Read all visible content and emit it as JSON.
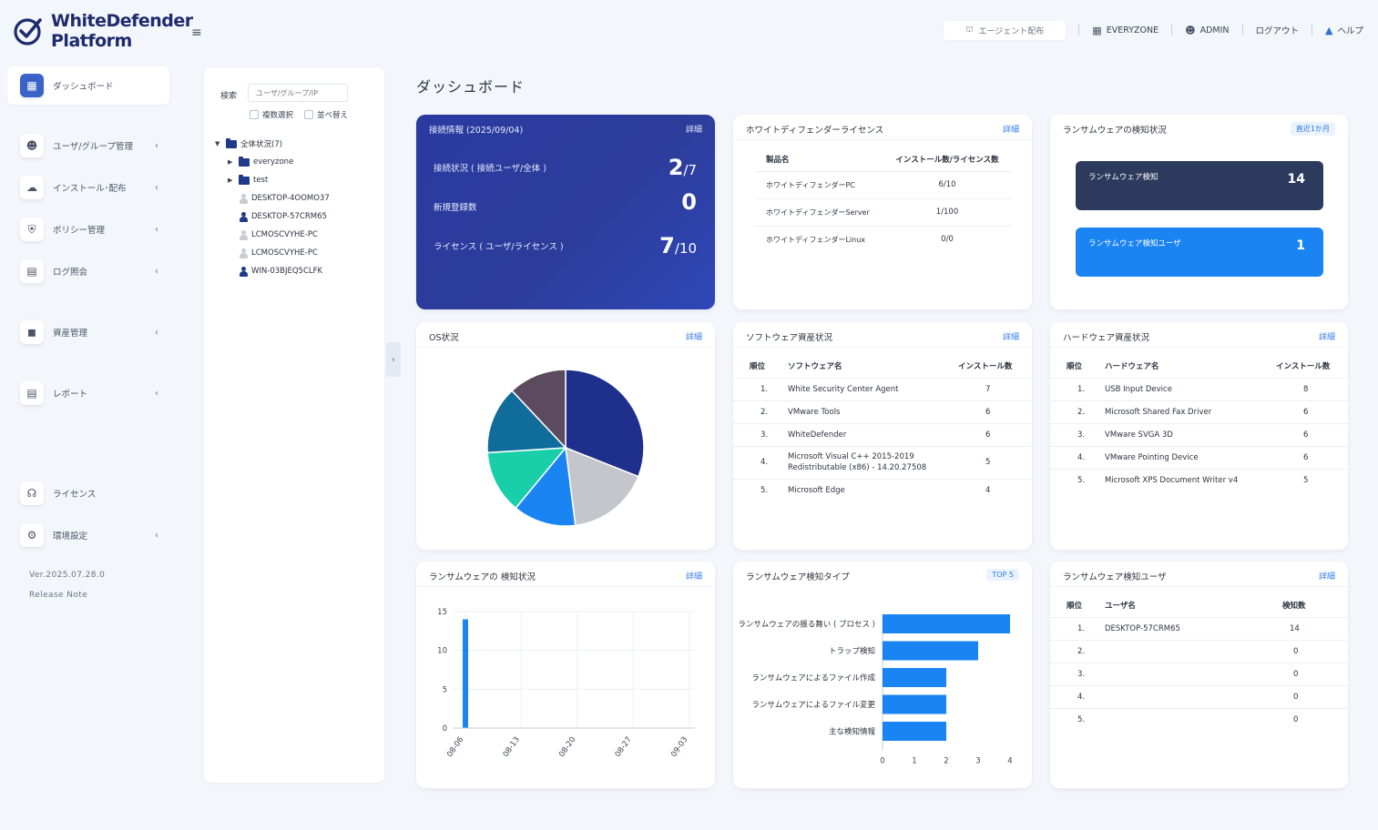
{
  "header": {
    "logo_line1": "WhiteDefender",
    "logo_line2": "Platform",
    "agent_button": "エージェント配布",
    "zone": "EVERYZONE",
    "user": "ADMIN",
    "logout": "ログアウト",
    "help": "ヘルプ"
  },
  "sidebar": {
    "items": [
      {
        "label": "ダッシュボード"
      },
      {
        "label": "ユーザ/グループ管理"
      },
      {
        "label": "インストール･配布"
      },
      {
        "label": "ポリシー管理"
      },
      {
        "label": "ログ照会"
      },
      {
        "label": "資産管理"
      },
      {
        "label": "レポート"
      },
      {
        "label": "ライセンス"
      },
      {
        "label": "環境設定"
      }
    ],
    "version": "Ver.2025.07.28.0",
    "release_note": "Release Note"
  },
  "tree": {
    "search_label": "検索",
    "search_placeholder": "ユーザ/グループ/IP",
    "multi_select": "複数選択",
    "sort": "並べ替え",
    "root": "全体状況(7)",
    "groups": [
      "everyzone",
      "test"
    ],
    "users": [
      {
        "name": "DESKTOP-4OOMO37",
        "active": false
      },
      {
        "name": "DESKTOP-57CRM65",
        "active": true
      },
      {
        "name": "LCMOSCVYHE-PC",
        "active": false
      },
      {
        "name": "LCMOSCVYHE-PC",
        "active": false
      },
      {
        "name": "WIN-03BJEQ5CLFK",
        "active": true
      }
    ]
  },
  "page_title": "ダッシュボード",
  "connection": {
    "title": "接続情報 (2025/09/04)",
    "link": "詳細",
    "rows": [
      {
        "label": "接続状況 ( 接続ユーザ/全体 )",
        "value": "2",
        "total": "/7"
      },
      {
        "label": "新規登録数",
        "value": "0",
        "total": ""
      },
      {
        "label": "ライセンス ( ユーザ/ライセンス )",
        "value": "7",
        "total": "/10"
      }
    ]
  },
  "license": {
    "title": "ホワイトディフェンダーライセンス",
    "link": "詳細",
    "headers": [
      "製品名",
      "インストール数/ライセンス数"
    ],
    "rows": [
      {
        "name": "ホワイトディフェンダーPC",
        "value": "6/10"
      },
      {
        "name": "ホワイトディフェンダーServer",
        "value": "1/100"
      },
      {
        "name": "ホワイトディフェンダーLinux",
        "value": "0/0"
      }
    ]
  },
  "ransom_status": {
    "title": "ランサムウェアの検知状況",
    "badge": "直近1か月",
    "items": [
      {
        "label": "ランサムウェア検知",
        "value": "14",
        "color": "#2c3a5e"
      },
      {
        "label": "ランサムウェア検知ユーザ",
        "value": "1",
        "color": "#1a84f2"
      }
    ]
  },
  "os": {
    "title": "OS状況",
    "link": "詳細"
  },
  "software": {
    "title": "ソフトウェア資産状況",
    "link": "詳細",
    "headers": [
      "順位",
      "ソフトウェア名",
      "インストール数"
    ],
    "rows": [
      {
        "rank": "1.",
        "name": "White Security Center Agent",
        "count": "7"
      },
      {
        "rank": "2.",
        "name": "VMware Tools",
        "count": "6"
      },
      {
        "rank": "3.",
        "name": "WhiteDefender",
        "count": "6"
      },
      {
        "rank": "4.",
        "name": "Microsoft Visual C++ 2015-2019 Redistributable (x86) - 14.20.27508",
        "count": "5"
      },
      {
        "rank": "5.",
        "name": "Microsoft Edge",
        "count": "4"
      }
    ]
  },
  "hardware": {
    "title": "ハードウェア資産状況",
    "link": "詳細",
    "headers": [
      "順位",
      "ハードウェア名",
      "インストール数"
    ],
    "rows": [
      {
        "rank": "1.",
        "name": "USB Input Device",
        "count": "8"
      },
      {
        "rank": "2.",
        "name": "Microsoft Shared Fax Driver",
        "count": "6"
      },
      {
        "rank": "3.",
        "name": "VMware SVGA 3D",
        "count": "6"
      },
      {
        "rank": "4.",
        "name": "VMware Pointing Device",
        "count": "6"
      },
      {
        "rank": "5.",
        "name": "Microsoft XPS Document Writer v4",
        "count": "5"
      }
    ]
  },
  "ransom_chart": {
    "title": "ランサムウェアの 検知状況",
    "link": "詳細"
  },
  "ransom_type": {
    "title": "ランサムウェア検知タイプ",
    "badge": "TOP 5"
  },
  "ransom_users": {
    "title": "ランサムウェア検知ユーザ",
    "link": "詳細",
    "headers": [
      "順位",
      "ユーザ名",
      "検知数"
    ],
    "rows": [
      {
        "rank": "1.",
        "name": "DESKTOP-57CRM65",
        "count": "14"
      },
      {
        "rank": "2.",
        "name": "",
        "count": "0"
      },
      {
        "rank": "3.",
        "name": "",
        "count": "0"
      },
      {
        "rank": "4.",
        "name": "",
        "count": "0"
      },
      {
        "rank": "5.",
        "name": "",
        "count": "0"
      }
    ]
  },
  "chart_data": [
    {
      "type": "pie",
      "values": [
        31,
        17,
        13,
        13,
        14,
        12
      ],
      "colors": [
        "#1e2f8c",
        "#c4c6cb",
        "#1a84f2",
        "#19cfa9",
        "#106c9a",
        "#5c4b5e"
      ]
    },
    {
      "type": "bar",
      "categories": [
        "08-06",
        "08-13",
        "08-20",
        "08-27",
        "09-03"
      ],
      "x": [
        "08-06",
        "08-13",
        "08-20",
        "08-27",
        "09-03"
      ],
      "values": [
        14,
        0,
        0,
        0,
        0
      ],
      "ylim": [
        0,
        15
      ],
      "yticks": [
        "0",
        "5",
        "10",
        "15"
      ],
      "grid": true
    },
    {
      "type": "bar",
      "orientation": "horizontal",
      "categories": [
        "ランサムウェアの振る舞い ( プロセス )",
        "トラップ検知",
        "ランサムウェアによるファイル作成",
        "ランサムウェアによるファイル変更",
        "主な検知情報"
      ],
      "values": [
        4,
        3,
        2,
        2,
        2
      ],
      "xlim": [
        0,
        4
      ],
      "xticks": [
        "0",
        "1",
        "2",
        "3",
        "4"
      ]
    }
  ]
}
